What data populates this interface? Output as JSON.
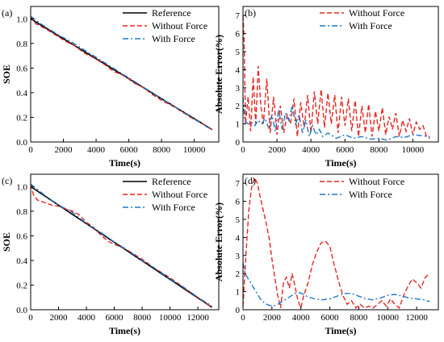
{
  "chart_data": [
    {
      "panel_label": "(a)",
      "type": "line",
      "xlabel": "Time(s)",
      "ylabel": "SOE",
      "xlim": [
        0,
        11500
      ],
      "ylim": [
        0.0,
        1.1
      ],
      "xticks": [
        0,
        2000,
        4000,
        6000,
        8000,
        10000
      ],
      "yticks": [
        0.0,
        0.2,
        0.4,
        0.6,
        0.8,
        1.0
      ],
      "ytick_format": 1,
      "legend_position": "top-right",
      "series": [
        {
          "name": "Reference",
          "color": "#000000",
          "style": "solid",
          "x": [
            0,
            11100
          ],
          "y": [
            1.0,
            0.1
          ]
        },
        {
          "name": "Without Force",
          "color": "#e8251f",
          "style": "dashed",
          "x": [
            0,
            300,
            900,
            1500,
            2100,
            2700,
            3300,
            3900,
            4500,
            5100,
            5700,
            6300,
            6900,
            7500,
            8100,
            8700,
            9300,
            9900,
            10500,
            11100
          ],
          "y": [
            1.02,
            0.96,
            0.92,
            0.87,
            0.82,
            0.78,
            0.72,
            0.68,
            0.63,
            0.57,
            0.54,
            0.48,
            0.44,
            0.38,
            0.33,
            0.29,
            0.24,
            0.19,
            0.15,
            0.1
          ]
        },
        {
          "name": "With Force",
          "color": "#1f78c4",
          "style": "dashdot",
          "x": [
            0,
            600,
            1200,
            1800,
            2400,
            3000,
            3600,
            4200,
            4800,
            5400,
            6000,
            6600,
            7200,
            7800,
            8400,
            9000,
            9600,
            10200,
            10800,
            11100
          ],
          "y": [
            1.02,
            0.96,
            0.91,
            0.86,
            0.82,
            0.77,
            0.72,
            0.67,
            0.62,
            0.57,
            0.52,
            0.47,
            0.42,
            0.37,
            0.32,
            0.27,
            0.22,
            0.17,
            0.12,
            0.1
          ]
        }
      ]
    },
    {
      "panel_label": "(b)",
      "type": "line",
      "xlabel": "Time(s)",
      "ylabel": "Absolute Error(%)",
      "xlim": [
        0,
        11500
      ],
      "ylim": [
        0,
        7.5
      ],
      "xticks": [
        0,
        2000,
        4000,
        6000,
        8000,
        10000
      ],
      "yticks": [
        0,
        1,
        2,
        3,
        4,
        5,
        6,
        7
      ],
      "ytick_format": 0,
      "legend_position": "top-right",
      "series": [
        {
          "name": "Without Force",
          "color": "#e8251f",
          "style": "dashed",
          "x": [
            0,
            60,
            150,
            300,
            450,
            600,
            750,
            900,
            1050,
            1200,
            1400,
            1600,
            1800,
            2000,
            2200,
            2400,
            2600,
            2800,
            3000,
            3200,
            3400,
            3600,
            3800,
            4000,
            4200,
            4400,
            4600,
            4800,
            5000,
            5200,
            5400,
            5600,
            5800,
            6000,
            6200,
            6400,
            6600,
            6800,
            7000,
            7200,
            7400,
            7600,
            7800,
            8000,
            8200,
            8400,
            8600,
            8800,
            9000,
            9200,
            9400,
            9600,
            9800,
            10000,
            10200,
            10400,
            10600,
            10800,
            11000
          ],
          "y": [
            7.0,
            5.8,
            1.0,
            2.5,
            0.6,
            3.6,
            1.0,
            4.2,
            2.0,
            1.0,
            3.5,
            0.5,
            2.5,
            0.4,
            2.0,
            0.5,
            1.5,
            1.0,
            2.4,
            0.3,
            2.2,
            0.8,
            2.6,
            0.5,
            2.8,
            1.0,
            2.9,
            0.8,
            2.7,
            1.0,
            2.6,
            0.5,
            2.5,
            0.9,
            2.4,
            0.6,
            2.3,
            0.3,
            2.0,
            0.5,
            2.1,
            0.3,
            1.7,
            0.6,
            1.9,
            0.4,
            1.4,
            0.7,
            1.6,
            0.3,
            1.2,
            0.6,
            1.3,
            0.4,
            1.1,
            0.7,
            0.9,
            0.3,
            0.2
          ]
        },
        {
          "name": "With Force",
          "color": "#1f78c4",
          "style": "dashdot",
          "x": [
            0,
            100,
            300,
            500,
            700,
            900,
            1100,
            1300,
            1500,
            1700,
            1900,
            2100,
            2300,
            2500,
            2700,
            2900,
            3100,
            3300,
            3500,
            3700,
            3900,
            4100,
            4300,
            4500,
            4700,
            5000,
            5500,
            6000,
            6500,
            7000,
            7500,
            8000,
            8500,
            9000,
            9500,
            10000,
            10500,
            11000
          ],
          "y": [
            2.5,
            1.2,
            1.0,
            1.1,
            0.9,
            1.2,
            1.0,
            1.3,
            0.8,
            1.5,
            0.6,
            1.8,
            0.7,
            1.6,
            1.2,
            2.0,
            1.0,
            1.5,
            0.5,
            1.2,
            0.3,
            0.9,
            0.4,
            0.7,
            0.3,
            0.5,
            0.2,
            0.4,
            0.2,
            0.3,
            0.15,
            0.2,
            0.1,
            0.3,
            0.25,
            0.4,
            0.35,
            0.3
          ]
        }
      ]
    },
    {
      "panel_label": "(c)",
      "type": "line",
      "xlabel": "Time(s)",
      "ylabel": "SOE",
      "xlim": [
        0,
        13500
      ],
      "ylim": [
        0.0,
        1.1
      ],
      "xticks": [
        0,
        2000,
        4000,
        6000,
        8000,
        10000,
        12000
      ],
      "yticks": [
        0.0,
        0.2,
        0.4,
        0.6,
        0.8,
        1.0
      ],
      "ytick_format": 1,
      "legend_position": "top-right",
      "series": [
        {
          "name": "Reference",
          "color": "#000000",
          "style": "solid",
          "x": [
            0,
            13000
          ],
          "y": [
            1.0,
            0.02
          ]
        },
        {
          "name": "Without Force",
          "color": "#e8251f",
          "style": "dashed",
          "x": [
            0,
            200,
            500,
            1000,
            1500,
            2000,
            2500,
            3000,
            3500,
            4000,
            4500,
            5000,
            5500,
            6000,
            6500,
            7000,
            8000,
            9000,
            10000,
            11000,
            12000,
            13000
          ],
          "y": [
            1.02,
            0.93,
            0.89,
            0.87,
            0.85,
            0.84,
            0.82,
            0.8,
            0.77,
            0.71,
            0.67,
            0.61,
            0.56,
            0.53,
            0.51,
            0.48,
            0.41,
            0.33,
            0.26,
            0.18,
            0.1,
            0.02
          ]
        },
        {
          "name": "With Force",
          "color": "#1f78c4",
          "style": "dashdot",
          "x": [
            0,
            1000,
            2000,
            3000,
            4000,
            5000,
            6000,
            7000,
            8000,
            9000,
            10000,
            11000,
            12000,
            13000
          ],
          "y": [
            1.02,
            0.93,
            0.85,
            0.79,
            0.7,
            0.63,
            0.55,
            0.48,
            0.4,
            0.33,
            0.25,
            0.18,
            0.1,
            0.03
          ]
        }
      ]
    },
    {
      "panel_label": "(d)",
      "type": "line",
      "xlabel": "Time(s)",
      "ylabel": "Absolute Error(%)",
      "xlim": [
        0,
        13500
      ],
      "ylim": [
        0,
        7.5
      ],
      "xticks": [
        0,
        2000,
        4000,
        6000,
        8000,
        10000,
        12000
      ],
      "yticks": [
        0,
        1,
        2,
        3,
        4,
        5,
        6,
        7
      ],
      "ytick_format": 0,
      "legend_position": "top-right",
      "series": [
        {
          "name": "Without Force",
          "color": "#e8251f",
          "style": "dashed",
          "x": [
            0,
            200,
            400,
            600,
            800,
            1000,
            1200,
            1400,
            1600,
            1800,
            2000,
            2200,
            2400,
            2600,
            2800,
            3000,
            3200,
            3400,
            3600,
            3800,
            4000,
            4200,
            4500,
            4800,
            5100,
            5400,
            5700,
            6000,
            6300,
            6600,
            6900,
            7200,
            7500,
            7800,
            8100,
            8400,
            8700,
            9000,
            9300,
            9600,
            9900,
            10200,
            10500,
            10800,
            11100,
            11400,
            11700,
            12000,
            12300,
            12600,
            12900
          ],
          "y": [
            0.2,
            3.0,
            5.5,
            6.8,
            7.3,
            7.0,
            6.2,
            5.5,
            4.8,
            4.0,
            2.8,
            1.8,
            0.8,
            0.1,
            1.5,
            1.8,
            1.2,
            2.0,
            1.3,
            0.5,
            0.1,
            0.8,
            1.5,
            2.5,
            3.2,
            3.7,
            3.8,
            3.5,
            2.5,
            1.6,
            0.8,
            0.3,
            0.5,
            0.1,
            0.3,
            0.1,
            0.2,
            0.1,
            0.3,
            0.5,
            0.2,
            0.6,
            0.3,
            0.1,
            0.8,
            1.3,
            1.7,
            1.5,
            1.2,
            1.8,
            2.0
          ]
        },
        {
          "name": "With Force",
          "color": "#1f78c4",
          "style": "dashdot",
          "x": [
            0,
            150,
            300,
            600,
            900,
            1200,
            1500,
            1800,
            2100,
            2400,
            2700,
            3000,
            3300,
            3600,
            3900,
            4200,
            4500,
            5000,
            5500,
            6000,
            6500,
            7000,
            7500,
            8000,
            8500,
            9000,
            9500,
            10000,
            10500,
            11000,
            11500,
            12000,
            12500,
            12900
          ],
          "y": [
            2.6,
            2.0,
            1.8,
            1.4,
            1.0,
            0.6,
            0.35,
            0.25,
            0.2,
            0.3,
            0.45,
            0.6,
            0.75,
            0.9,
            0.95,
            0.85,
            0.7,
            0.6,
            0.55,
            0.6,
            0.75,
            0.9,
            0.9,
            0.75,
            0.6,
            0.55,
            0.65,
            0.8,
            0.85,
            0.75,
            0.65,
            0.6,
            0.55,
            0.45
          ]
        }
      ]
    }
  ]
}
